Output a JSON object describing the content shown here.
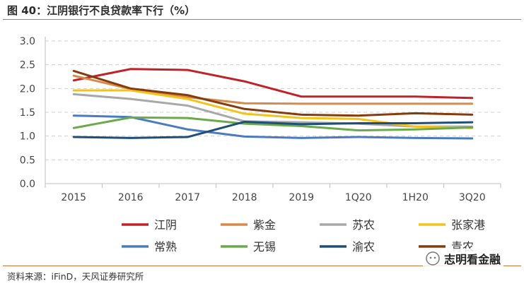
{
  "title": "图 40：江阴银行不良贷款率下行（%）",
  "source": "资料来源：iFinD，天风证券研究所",
  "watermark": "志明看金融",
  "chart_data": {
    "type": "line",
    "categories": [
      "2015",
      "2016",
      "2017",
      "2018",
      "2019",
      "1Q20",
      "1H20",
      "3Q20"
    ],
    "ylim": [
      0.0,
      3.0
    ],
    "yticks": [
      "0.0",
      "0.5",
      "1.0",
      "1.5",
      "2.0",
      "2.5",
      "3.0"
    ],
    "grid": true,
    "legend_position": "bottom",
    "series": [
      {
        "name": "江阴",
        "color": "#c0222a",
        "values": [
          2.17,
          2.41,
          2.39,
          2.15,
          1.83,
          1.83,
          1.83,
          1.8
        ]
      },
      {
        "name": "紫金",
        "color": "#d88a4b",
        "values": [
          2.27,
          1.99,
          1.82,
          1.69,
          1.68,
          1.68,
          1.68,
          1.68
        ]
      },
      {
        "name": "苏农",
        "color": "#a8a8a8",
        "values": [
          1.88,
          1.78,
          1.64,
          1.31,
          1.29,
          1.26,
          1.2,
          1.2
        ]
      },
      {
        "name": "张家港",
        "color": "#f2c31a",
        "values": [
          1.96,
          1.96,
          1.78,
          1.47,
          1.38,
          1.36,
          1.2,
          1.17
        ]
      },
      {
        "name": "常熟",
        "color": "#4b7bbf",
        "values": [
          1.43,
          1.4,
          1.14,
          0.99,
          0.96,
          0.98,
          0.96,
          0.95
        ]
      },
      {
        "name": "无锡",
        "color": "#6aaa4a",
        "values": [
          1.17,
          1.39,
          1.38,
          1.26,
          1.21,
          1.12,
          1.14,
          1.18
        ]
      },
      {
        "name": "渝农",
        "color": "#1f4e79",
        "values": [
          0.98,
          0.96,
          0.98,
          1.3,
          1.25,
          1.27,
          1.27,
          1.29
        ]
      },
      {
        "name": "青农",
        "color": "#843c0c",
        "values": [
          2.37,
          2.0,
          1.86,
          1.57,
          1.45,
          1.43,
          1.48,
          1.45
        ]
      }
    ]
  }
}
